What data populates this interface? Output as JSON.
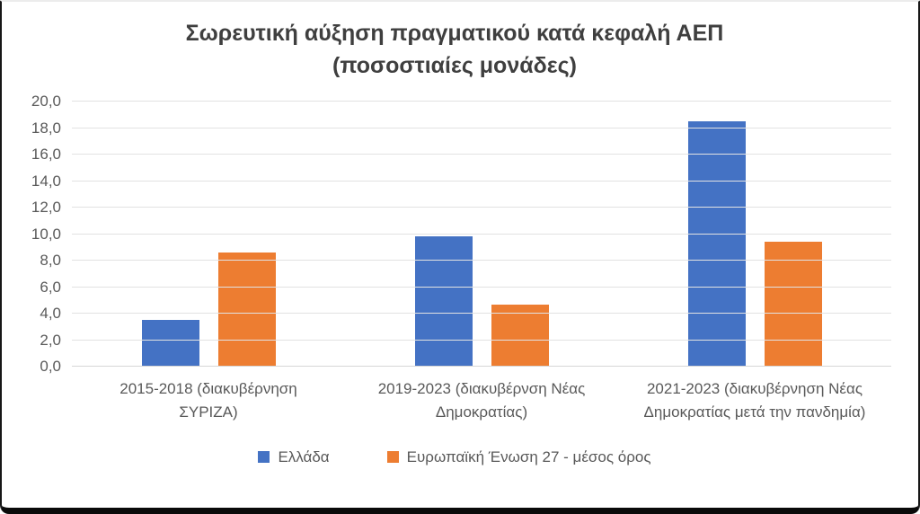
{
  "chart_data": {
    "type": "bar",
    "title": "Σωρευτική αύξηση πραγματικού κατά κεφαλή ΑΕΠ (ποσοστιαίες μονάδες)",
    "title_lines": [
      "Σωρευτική αύξηση πραγματικού κατά κεφαλή ΑΕΠ",
      "(ποσοστιαίες μονάδες)"
    ],
    "categories": [
      "2015-2018 (διακυβέρνηση ΣΥΡΙΖΑ)",
      "2019-2023 (διακυβέρνση Νέας Δημοκρατίας)",
      "2021-2023 (διακυβέρνηση Νέας Δημοκρατίας μετά την πανδημία)"
    ],
    "series": [
      {
        "name": "Ελλάδα",
        "color": "#4472C4",
        "values": [
          3.5,
          9.8,
          18.5
        ]
      },
      {
        "name": "Ευρωπαϊκή Ένωση 27 - μέσος όρος",
        "color": "#ED7D31",
        "values": [
          8.6,
          4.7,
          9.4
        ]
      }
    ],
    "ylim": [
      0,
      20
    ],
    "ytick_step": 2,
    "ytick_labels": [
      "0,0",
      "2,0",
      "4,0",
      "6,0",
      "8,0",
      "10,0",
      "12,0",
      "14,0",
      "16,0",
      "18,0",
      "20,0"
    ],
    "xlabel": "",
    "ylabel": "",
    "grid": true,
    "legend_position": "bottom",
    "colors": {
      "grid": "#E2E2E2",
      "axis_text": "#595959",
      "title_text": "#3F3F3F"
    }
  }
}
